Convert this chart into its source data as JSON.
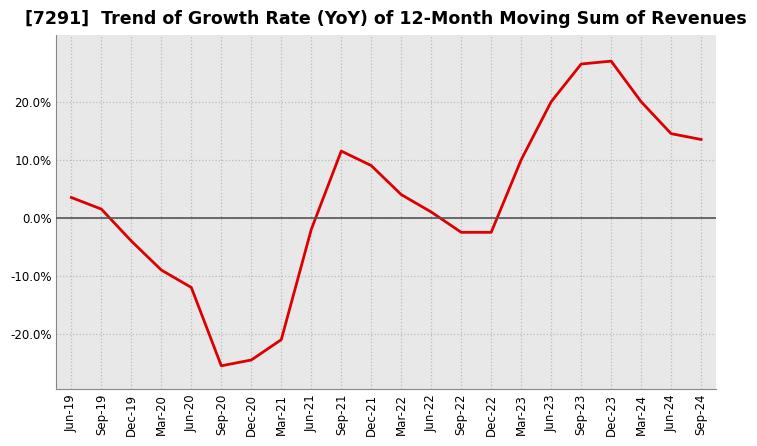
{
  "title": "[7291]  Trend of Growth Rate (YoY) of 12-Month Moving Sum of Revenues",
  "x_labels": [
    "Jun-19",
    "Sep-19",
    "Dec-19",
    "Mar-20",
    "Jun-20",
    "Sep-20",
    "Dec-20",
    "Mar-21",
    "Jun-21",
    "Sep-21",
    "Dec-21",
    "Mar-22",
    "Jun-22",
    "Sep-22",
    "Dec-22",
    "Mar-23",
    "Jun-23",
    "Sep-23",
    "Dec-23",
    "Mar-24",
    "Jun-24",
    "Sep-24"
  ],
  "y_values": [
    0.035,
    0.015,
    -0.04,
    -0.09,
    -0.12,
    -0.255,
    -0.245,
    -0.21,
    -0.02,
    0.115,
    0.09,
    0.04,
    0.01,
    -0.025,
    -0.025,
    0.1,
    0.2,
    0.265,
    0.27,
    0.2,
    0.145,
    0.135
  ],
  "line_color": "#dd0000",
  "background_color": "#ffffff",
  "plot_bg_color": "#e8e8e8",
  "grid_color": "#bbbbbb",
  "zero_line_color": "#555555",
  "ylim": [
    -0.295,
    0.315
  ],
  "yticks": [
    -0.2,
    -0.1,
    0.0,
    0.1,
    0.2
  ],
  "title_fontsize": 12.5,
  "tick_fontsize": 8.5
}
